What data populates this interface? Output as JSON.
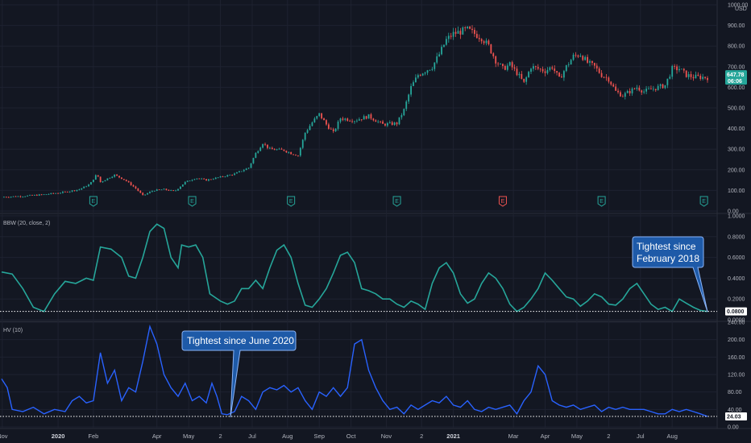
{
  "chart_data": [
    {
      "type": "candlestick",
      "currency": "USD",
      "ylim": [
        0,
        1000
      ],
      "yticks": [
        "1000.00",
        "900.00",
        "800.00",
        "700.00",
        "600.00",
        "500.00",
        "400.00",
        "300.00",
        "200.00",
        "100.00",
        "0.00"
      ],
      "ytick_values": [
        1000,
        900,
        800,
        700,
        600,
        500,
        400,
        300,
        200,
        100,
        0
      ],
      "last_price": "647.78",
      "countdown": "06:06",
      "up_color": "#26a69a",
      "down_color": "#ef5350",
      "close_path": [
        [
          0,
          68
        ],
        [
          3,
          72
        ],
        [
          6,
          80
        ],
        [
          9,
          92
        ],
        [
          11,
          105
        ],
        [
          12.5,
          130
        ],
        [
          13.5,
          180
        ],
        [
          14,
          140
        ],
        [
          16,
          175
        ],
        [
          17.5,
          150
        ],
        [
          19,
          110
        ],
        [
          20,
          75
        ],
        [
          21.5,
          100
        ],
        [
          23,
          105
        ],
        [
          24.5,
          95
        ],
        [
          26,
          140
        ],
        [
          27.5,
          160
        ],
        [
          29,
          150
        ],
        [
          31,
          165
        ],
        [
          33,
          180
        ],
        [
          35,
          210
        ],
        [
          36,
          280
        ],
        [
          37,
          330
        ],
        [
          38,
          300
        ],
        [
          40,
          295
        ],
        [
          41,
          280
        ],
        [
          42,
          270
        ],
        [
          43,
          380
        ],
        [
          44,
          430
        ],
        [
          45,
          470
        ],
        [
          46,
          420
        ],
        [
          47,
          380
        ],
        [
          48,
          450
        ],
        [
          50,
          440
        ],
        [
          52,
          460
        ],
        [
          54,
          420
        ],
        [
          56,
          425
        ],
        [
          57,
          490
        ],
        [
          58,
          600
        ],
        [
          59,
          660
        ],
        [
          60,
          680
        ],
        [
          61,
          700
        ],
        [
          62,
          760
        ],
        [
          63,
          830
        ],
        [
          64,
          860
        ],
        [
          65,
          870
        ],
        [
          66,
          880
        ],
        [
          67,
          860
        ],
        [
          68,
          840
        ],
        [
          69,
          800
        ],
        [
          70,
          730
        ],
        [
          71,
          690
        ],
        [
          72,
          710
        ],
        [
          73,
          670
        ],
        [
          74,
          620
        ],
        [
          75,
          700
        ],
        [
          76,
          690
        ],
        [
          77,
          680
        ],
        [
          78,
          700
        ],
        [
          79,
          640
        ],
        [
          80,
          700
        ],
        [
          81,
          750
        ],
        [
          82,
          760
        ],
        [
          83,
          720
        ],
        [
          84,
          700
        ],
        [
          85,
          660
        ],
        [
          86,
          640
        ],
        [
          87,
          580
        ],
        [
          88,
          560
        ],
        [
          89,
          580
        ],
        [
          90,
          600
        ],
        [
          91,
          580
        ],
        [
          92,
          590
        ],
        [
          93,
          600
        ],
        [
          94,
          610
        ],
        [
          95,
          690
        ],
        [
          96,
          690
        ],
        [
          97,
          660
        ],
        [
          98,
          650
        ],
        [
          99,
          650
        ],
        [
          100,
          648
        ]
      ],
      "earnings_markers": [
        {
          "t": 13,
          "label": "E",
          "kind": "up"
        },
        {
          "t": 27,
          "label": "E",
          "kind": "up"
        },
        {
          "t": 41,
          "label": "E",
          "kind": "up"
        },
        {
          "t": 56,
          "label": "E",
          "kind": "up"
        },
        {
          "t": 71,
          "label": "E",
          "kind": "down"
        },
        {
          "t": 85,
          "label": "E",
          "kind": "up"
        },
        {
          "t": 99.5,
          "label": "E",
          "kind": "up"
        }
      ]
    },
    {
      "type": "line",
      "title": "BBW (20, close, 2)",
      "ylim": [
        0,
        1
      ],
      "yticks": [
        "1.0000",
        "0.8000",
        "0.6000",
        "0.4000",
        "0.2000",
        "0.0000"
      ],
      "ytick_values": [
        1,
        0.8,
        0.6,
        0.4,
        0.2,
        0
      ],
      "last_value": "0.0800",
      "line_color": "#26a69a",
      "points": [
        [
          0,
          0.46
        ],
        [
          1.5,
          0.44
        ],
        [
          3,
          0.3
        ],
        [
          4.5,
          0.12
        ],
        [
          6,
          0.08
        ],
        [
          7.5,
          0.25
        ],
        [
          9,
          0.37
        ],
        [
          10.5,
          0.35
        ],
        [
          12,
          0.4
        ],
        [
          13,
          0.38
        ],
        [
          14,
          0.7
        ],
        [
          15.5,
          0.68
        ],
        [
          17,
          0.6
        ],
        [
          18,
          0.42
        ],
        [
          19,
          0.4
        ],
        [
          20,
          0.6
        ],
        [
          21,
          0.85
        ],
        [
          22,
          0.92
        ],
        [
          23,
          0.88
        ],
        [
          24,
          0.6
        ],
        [
          25,
          0.5
        ],
        [
          25.5,
          0.72
        ],
        [
          26.5,
          0.7
        ],
        [
          27.5,
          0.72
        ],
        [
          28.5,
          0.6
        ],
        [
          29.5,
          0.25
        ],
        [
          31,
          0.18
        ],
        [
          32,
          0.15
        ],
        [
          33,
          0.18
        ],
        [
          34,
          0.3
        ],
        [
          35,
          0.3
        ],
        [
          36,
          0.38
        ],
        [
          37,
          0.3
        ],
        [
          38,
          0.5
        ],
        [
          39,
          0.67
        ],
        [
          40,
          0.72
        ],
        [
          41,
          0.6
        ],
        [
          42,
          0.35
        ],
        [
          43,
          0.14
        ],
        [
          44,
          0.12
        ],
        [
          45,
          0.2
        ],
        [
          46,
          0.3
        ],
        [
          47,
          0.45
        ],
        [
          48,
          0.62
        ],
        [
          49,
          0.65
        ],
        [
          50,
          0.55
        ],
        [
          51,
          0.3
        ],
        [
          52,
          0.28
        ],
        [
          53,
          0.25
        ],
        [
          54,
          0.2
        ],
        [
          55,
          0.2
        ],
        [
          56,
          0.15
        ],
        [
          57,
          0.12
        ],
        [
          58,
          0.18
        ],
        [
          59,
          0.15
        ],
        [
          60,
          0.1
        ],
        [
          61,
          0.35
        ],
        [
          62,
          0.5
        ],
        [
          63,
          0.55
        ],
        [
          64,
          0.45
        ],
        [
          65,
          0.25
        ],
        [
          66,
          0.16
        ],
        [
          67,
          0.2
        ],
        [
          68,
          0.35
        ],
        [
          69,
          0.45
        ],
        [
          70,
          0.4
        ],
        [
          71,
          0.3
        ],
        [
          72,
          0.15
        ],
        [
          73,
          0.08
        ],
        [
          74,
          0.12
        ],
        [
          75,
          0.2
        ],
        [
          76,
          0.3
        ],
        [
          77,
          0.45
        ],
        [
          78,
          0.38
        ],
        [
          79,
          0.3
        ],
        [
          80,
          0.22
        ],
        [
          81,
          0.2
        ],
        [
          82,
          0.13
        ],
        [
          83,
          0.18
        ],
        [
          84,
          0.25
        ],
        [
          85,
          0.22
        ],
        [
          86,
          0.15
        ],
        [
          87,
          0.14
        ],
        [
          88,
          0.2
        ],
        [
          89,
          0.3
        ],
        [
          90,
          0.35
        ],
        [
          91,
          0.25
        ],
        [
          92,
          0.15
        ],
        [
          93,
          0.1
        ],
        [
          94,
          0.12
        ],
        [
          95,
          0.08
        ],
        [
          96,
          0.2
        ],
        [
          97,
          0.16
        ],
        [
          98,
          0.12
        ],
        [
          99,
          0.09
        ],
        [
          100,
          0.08
        ]
      ]
    },
    {
      "type": "line",
      "title": "HV (10)",
      "ylim": [
        0,
        240
      ],
      "yticks": [
        "240.00",
        "200.00",
        "160.00",
        "120.00",
        "80.00",
        "40.00",
        "0.00"
      ],
      "ytick_values": [
        240,
        200,
        160,
        120,
        80,
        40,
        0
      ],
      "last_value": "24.03",
      "line_color": "#2962ff",
      "points": [
        [
          0,
          110
        ],
        [
          0.8,
          90
        ],
        [
          1.5,
          40
        ],
        [
          3,
          35
        ],
        [
          4.5,
          45
        ],
        [
          6,
          30
        ],
        [
          7.5,
          40
        ],
        [
          9,
          35
        ],
        [
          10,
          60
        ],
        [
          11,
          70
        ],
        [
          12,
          55
        ],
        [
          13,
          60
        ],
        [
          14,
          170
        ],
        [
          15,
          100
        ],
        [
          16,
          130
        ],
        [
          17,
          60
        ],
        [
          18,
          90
        ],
        [
          19,
          80
        ],
        [
          20,
          150
        ],
        [
          21,
          230
        ],
        [
          22,
          190
        ],
        [
          23,
          120
        ],
        [
          24,
          90
        ],
        [
          25,
          70
        ],
        [
          26,
          100
        ],
        [
          27,
          60
        ],
        [
          28,
          70
        ],
        [
          29,
          55
        ],
        [
          29.8,
          100
        ],
        [
          30.5,
          70
        ],
        [
          31.2,
          30
        ],
        [
          32,
          28
        ],
        [
          33,
          35
        ],
        [
          34,
          70
        ],
        [
          35,
          60
        ],
        [
          36,
          40
        ],
        [
          37,
          80
        ],
        [
          38,
          90
        ],
        [
          39,
          85
        ],
        [
          40,
          95
        ],
        [
          41,
          80
        ],
        [
          42,
          90
        ],
        [
          43,
          60
        ],
        [
          44,
          40
        ],
        [
          45,
          80
        ],
        [
          46,
          70
        ],
        [
          47,
          90
        ],
        [
          48,
          70
        ],
        [
          49,
          90
        ],
        [
          50,
          190
        ],
        [
          51,
          200
        ],
        [
          52,
          130
        ],
        [
          53,
          90
        ],
        [
          54,
          60
        ],
        [
          55,
          40
        ],
        [
          56,
          45
        ],
        [
          57,
          30
        ],
        [
          58,
          50
        ],
        [
          59,
          40
        ],
        [
          60,
          50
        ],
        [
          61,
          60
        ],
        [
          62,
          55
        ],
        [
          63,
          70
        ],
        [
          64,
          50
        ],
        [
          65,
          45
        ],
        [
          66,
          60
        ],
        [
          67,
          40
        ],
        [
          68,
          35
        ],
        [
          69,
          45
        ],
        [
          70,
          40
        ],
        [
          71,
          45
        ],
        [
          72,
          50
        ],
        [
          73,
          30
        ],
        [
          74,
          60
        ],
        [
          75,
          80
        ],
        [
          76,
          140
        ],
        [
          77,
          120
        ],
        [
          78,
          60
        ],
        [
          79,
          50
        ],
        [
          80,
          45
        ],
        [
          81,
          50
        ],
        [
          82,
          40
        ],
        [
          83,
          45
        ],
        [
          84,
          50
        ],
        [
          85,
          35
        ],
        [
          86,
          45
        ],
        [
          87,
          40
        ],
        [
          88,
          45
        ],
        [
          89,
          40
        ],
        [
          90,
          40
        ],
        [
          91,
          40
        ],
        [
          92,
          35
        ],
        [
          93,
          30
        ],
        [
          94,
          30
        ],
        [
          95,
          40
        ],
        [
          96,
          35
        ],
        [
          97,
          40
        ],
        [
          98,
          35
        ],
        [
          99,
          30
        ],
        [
          100,
          24
        ]
      ]
    }
  ],
  "x_axis": {
    "labels": [
      {
        "t": 0.1,
        "text": "Nov",
        "bold": false
      },
      {
        "t": 8,
        "text": "2020",
        "bold": true
      },
      {
        "t": 13,
        "text": "Feb",
        "bold": false
      },
      {
        "t": 22,
        "text": "Apr",
        "bold": false
      },
      {
        "t": 26.5,
        "text": "May",
        "bold": false
      },
      {
        "t": 31,
        "text": "2",
        "bold": false
      },
      {
        "t": 35.5,
        "text": "Jul",
        "bold": false
      },
      {
        "t": 40.5,
        "text": "Aug",
        "bold": false
      },
      {
        "t": 45,
        "text": "Sep",
        "bold": false
      },
      {
        "t": 49.5,
        "text": "Oct",
        "bold": false
      },
      {
        "t": 54.5,
        "text": "Nov",
        "bold": false
      },
      {
        "t": 59.5,
        "text": "2",
        "bold": false
      },
      {
        "t": 64,
        "text": "2021",
        "bold": true
      },
      {
        "t": 72.5,
        "text": "Mar",
        "bold": false
      },
      {
        "t": 77,
        "text": "Apr",
        "bold": false
      },
      {
        "t": 81.5,
        "text": "May",
        "bold": false
      },
      {
        "t": 86,
        "text": "2",
        "bold": false
      },
      {
        "t": 90.5,
        "text": "Jul",
        "bold": false
      },
      {
        "t": 95,
        "text": "Aug",
        "bold": false
      }
    ]
  },
  "annotations": {
    "bbw": {
      "text_line1": "Tightest since",
      "text_line2": "February 2018"
    },
    "hv": {
      "text": "Tightest since June 2020"
    }
  },
  "colors": {
    "background": "#131722",
    "grid": "#1e2230",
    "callout_fill": "#1e5aa8",
    "callout_border": "#8ab4f8"
  }
}
